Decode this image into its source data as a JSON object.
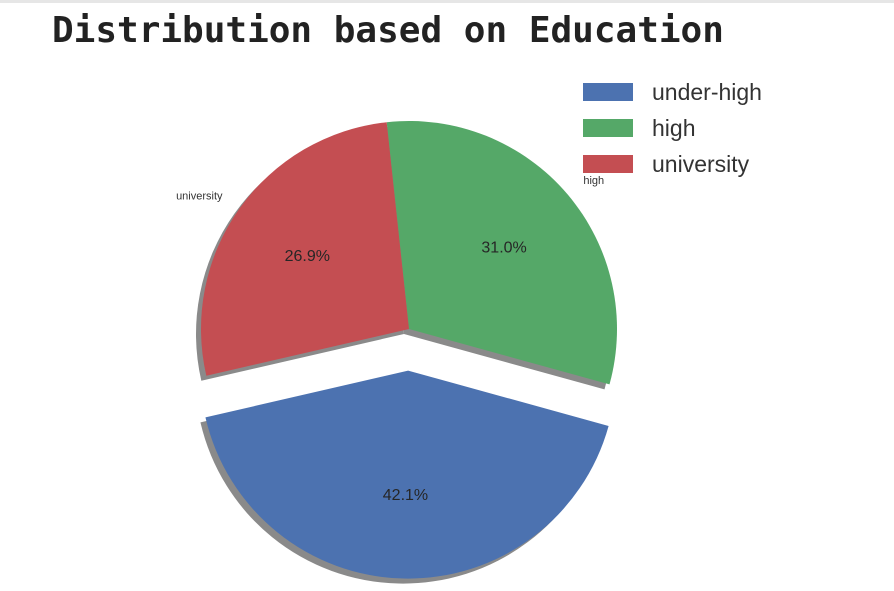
{
  "chart_data": {
    "type": "pie",
    "title": "Distribution based on Education",
    "categories": [
      "under-high",
      "high",
      "university"
    ],
    "values": [
      42.1,
      31.0,
      26.9
    ],
    "percent_labels": [
      "42.1%",
      "31.0%",
      "26.9%"
    ],
    "colors": [
      "#4c72b0",
      "#55a868",
      "#c44e52"
    ],
    "explode": [
      0.2,
      0,
      0
    ],
    "shadow": true,
    "legend": {
      "placement": "top-right",
      "entries": [
        "under-high",
        "high",
        "university"
      ]
    }
  }
}
